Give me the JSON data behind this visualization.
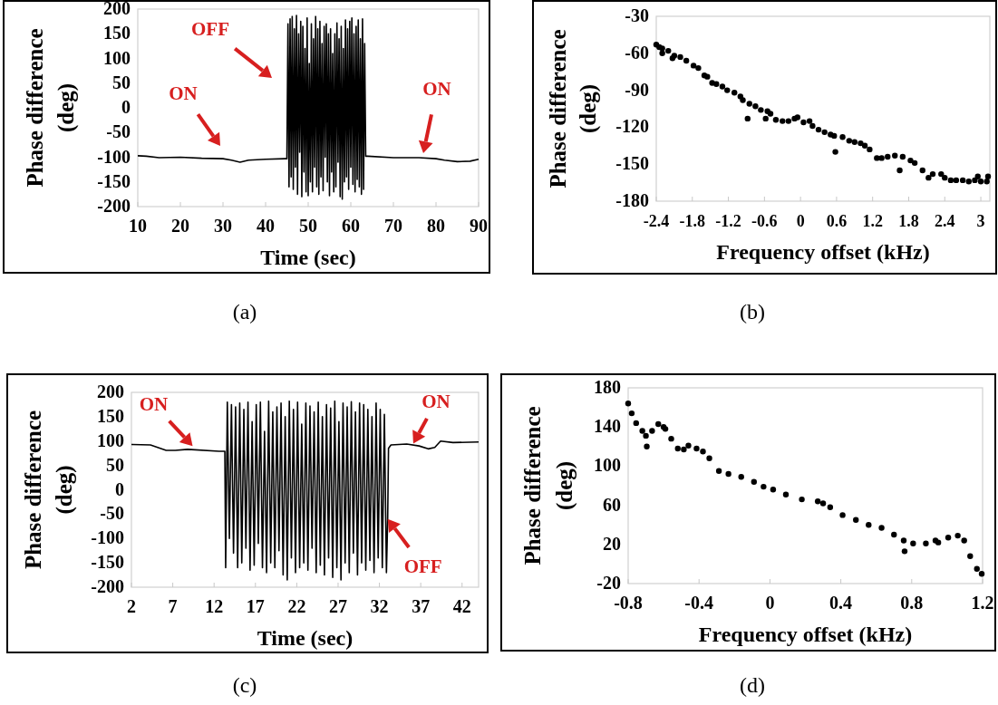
{
  "chart_data": [
    {
      "type": "line",
      "title": "(a)",
      "xlabel": "Time (sec)",
      "ylabel": "Phase difference (deg)",
      "xlim": [
        10,
        90
      ],
      "xticks": [
        10,
        20,
        30,
        40,
        50,
        60,
        70,
        80,
        90
      ],
      "ylim": [
        -200,
        200
      ],
      "yticks": [
        -200,
        -150,
        -100,
        -50,
        0,
        50,
        100,
        150,
        200
      ],
      "series": [
        {
          "color": "#000000",
          "x": [
            10,
            12,
            15,
            20,
            25,
            30,
            32,
            34,
            36,
            40,
            44.5,
            45,
            45.25,
            45.5,
            45.75,
            46,
            46.25,
            46.5,
            46.75,
            47,
            47.25,
            47.5,
            47.75,
            48,
            48.25,
            48.5,
            48.75,
            49,
            49.25,
            49.5,
            49.75,
            50,
            50.25,
            50.5,
            50.75,
            51,
            51.25,
            51.5,
            51.75,
            52,
            52.25,
            52.5,
            52.75,
            53,
            53.25,
            53.5,
            53.75,
            54,
            54.25,
            54.5,
            54.75,
            55,
            55.25,
            55.5,
            55.75,
            56,
            56.25,
            56.5,
            56.75,
            57,
            57.25,
            57.5,
            57.75,
            58,
            58.25,
            58.5,
            58.75,
            59,
            59.25,
            59.5,
            59.75,
            60,
            60.25,
            60.5,
            60.75,
            61,
            61.25,
            61.5,
            61.75,
            62,
            62.25,
            62.5,
            62.75,
            63,
            63.25,
            63.5,
            64,
            70,
            76,
            80,
            82,
            85,
            88,
            90
          ],
          "values": [
            -97,
            -98,
            -101,
            -100,
            -102,
            -103,
            -106,
            -110,
            -106,
            -104,
            -103,
            -103,
            170,
            -160,
            180,
            -140,
            185,
            -165,
            160,
            -120,
            187,
            -175,
            150,
            -90,
            175,
            -180,
            165,
            -130,
            120,
            -170,
            182,
            -178,
            90,
            -150,
            170,
            -170,
            140,
            -120,
            185,
            -160,
            160,
            -175,
            175,
            -140,
            130,
            -168,
            165,
            -100,
            170,
            -150,
            150,
            -178,
            160,
            -130,
            110,
            -170,
            150,
            -160,
            172,
            -110,
            140,
            -180,
            165,
            -185,
            120,
            -150,
            178,
            -140,
            160,
            -165,
            175,
            -120,
            182,
            -155,
            150,
            -170,
            165,
            -145,
            178,
            -160,
            140,
            -175,
            180,
            -165,
            130,
            -98,
            -98,
            -101,
            -101,
            -103,
            -106,
            -109,
            -108,
            -104
          ]
        }
      ],
      "annotations": [
        "OFF",
        "ON",
        "ON"
      ]
    },
    {
      "type": "scatter",
      "title": "(b)",
      "xlabel": "Frequency offset (kHz)",
      "ylabel": "Phase difference (deg)",
      "xlim": [
        -2.4,
        3.15
      ],
      "xticks": [
        -2.4,
        -1.8,
        -1.2,
        -0.6,
        0,
        0.6,
        1.2,
        1.8,
        2.4,
        3
      ],
      "ylim": [
        -180,
        -30
      ],
      "yticks": [
        -180,
        -150,
        -120,
        -90,
        -60,
        -30
      ],
      "marker": "circle",
      "series": [
        {
          "color": "#000000",
          "x": [
            -2.4,
            -2.35,
            -2.3,
            -2.3,
            -2.2,
            -2.13,
            -2.1,
            -2.0,
            -1.9,
            -1.78,
            -1.7,
            -1.6,
            -1.55,
            -1.47,
            -1.4,
            -1.3,
            -1.22,
            -1.1,
            -1.0,
            -0.96,
            -0.88,
            -0.85,
            -0.75,
            -0.66,
            -0.58,
            -0.55,
            -0.5,
            -0.41,
            -0.3,
            -0.2,
            -0.1,
            -0.05,
            0.05,
            0.15,
            0.2,
            0.3,
            0.4,
            0.5,
            0.56,
            0.58,
            0.7,
            0.81,
            0.9,
            1.0,
            1.07,
            1.15,
            1.27,
            1.35,
            1.45,
            1.57,
            1.65,
            1.7,
            1.83,
            1.9,
            2.03,
            2.13,
            2.2,
            2.34,
            2.4,
            2.5,
            2.59,
            2.7,
            2.8,
            2.9,
            2.95,
            3.0,
            3.1,
            3.12
          ],
          "values": [
            -53,
            -55,
            -56,
            -60,
            -58,
            -64,
            -62,
            -63,
            -66,
            -70,
            -72,
            -78,
            -79,
            -84,
            -85,
            -87,
            -90,
            -92,
            -95,
            -98,
            -113,
            -101,
            -103,
            -106,
            -113,
            -107,
            -109,
            -114,
            -115,
            -115,
            -113,
            -112,
            -116,
            -115,
            -119,
            -122,
            -124,
            -126,
            -127,
            -140,
            -128,
            -131,
            -132,
            -133,
            -135,
            -138,
            -145,
            -145,
            -144,
            -143,
            -155,
            -144,
            -147,
            -149,
            -155,
            -161,
            -158,
            -158,
            -161,
            -163,
            -163,
            -163,
            -164,
            -163,
            -160,
            -164,
            -164,
            -160
          ]
        }
      ]
    },
    {
      "type": "line",
      "title": "(c)",
      "xlabel": "Time (sec)",
      "ylabel": "Phase difference (deg)",
      "xlim": [
        2,
        44
      ],
      "xticks": [
        2,
        7,
        12,
        17,
        22,
        27,
        32,
        37,
        42
      ],
      "ylim": [
        -200,
        200
      ],
      "yticks": [
        -200,
        -150,
        -100,
        -50,
        0,
        50,
        100,
        150,
        200
      ],
      "series": [
        {
          "color": "#000000",
          "x": [
            2,
            4.3,
            6.2,
            7.3,
            8.8,
            12.6,
            13.3,
            13.4,
            13.6,
            13.85,
            14.1,
            14.35,
            14.6,
            14.85,
            15.1,
            15.35,
            15.6,
            15.85,
            16.1,
            16.35,
            16.6,
            16.85,
            17.1,
            17.35,
            17.6,
            17.85,
            18.1,
            18.35,
            18.6,
            18.85,
            19.1,
            19.35,
            19.6,
            19.85,
            20.1,
            20.35,
            20.6,
            20.85,
            21.1,
            21.35,
            21.6,
            21.85,
            22.1,
            22.35,
            22.6,
            22.85,
            23.1,
            23.35,
            23.6,
            23.85,
            24.1,
            24.35,
            24.6,
            24.85,
            25.1,
            25.35,
            25.6,
            25.85,
            26.1,
            26.35,
            26.6,
            26.85,
            27.1,
            27.35,
            27.6,
            27.85,
            28.1,
            28.35,
            28.6,
            28.85,
            29.1,
            29.35,
            29.6,
            29.85,
            30.1,
            30.35,
            30.6,
            30.85,
            31.1,
            31.35,
            31.6,
            31.85,
            32.1,
            32.35,
            32.6,
            32.85,
            33.0,
            33.1,
            33.4,
            35.3,
            36.8,
            37.9,
            38.7,
            39.4,
            40.9,
            44
          ],
          "values": [
            93,
            92,
            81,
            81,
            83,
            79,
            79,
            -160,
            180,
            -100,
            175,
            -130,
            170,
            -160,
            178,
            -150,
            165,
            -120,
            180,
            -165,
            140,
            -155,
            175,
            -110,
            180,
            -160,
            120,
            -170,
            182,
            -150,
            160,
            -160,
            170,
            -125,
            178,
            -175,
            150,
            -185,
            182,
            -140,
            165,
            -170,
            180,
            -160,
            135,
            -150,
            178,
            -165,
            172,
            -120,
            160,
            -170,
            180,
            -155,
            150,
            -175,
            175,
            -140,
            168,
            -180,
            182,
            -160,
            140,
            -185,
            178,
            -150,
            170,
            -170,
            181,
            -130,
            160,
            -175,
            178,
            -150,
            175,
            -165,
            165,
            -145,
            150,
            -170,
            178,
            -140,
            165,
            -160,
            155,
            -170,
            -60,
            85,
            92,
            94,
            90,
            84,
            87,
            100,
            97,
            98
          ]
        }
      ],
      "annotations": [
        {
          "text": "ON",
          "x": 9.4,
          "y": 90
        },
        {
          "text": "ON",
          "x": 36.1,
          "y": 95
        },
        {
          "text": "OFF",
          "x": 33,
          "y": -60
        }
      ]
    },
    {
      "type": "scatter",
      "title": "(d)",
      "xlabel": "Frequency offset (kHz)",
      "ylabel": "Phase difference (deg)",
      "xlim": [
        -0.8,
        1.2
      ],
      "xticks": [
        -0.8,
        -0.4,
        0,
        0.4,
        0.8,
        1.2
      ],
      "ylim": [
        -20,
        180
      ],
      "yticks": [
        -20,
        20,
        60,
        100,
        140,
        180
      ],
      "marker": "circle",
      "series": [
        {
          "color": "#000000",
          "x": [
            -0.8,
            -0.78,
            -0.755,
            -0.72,
            -0.7,
            -0.695,
            -0.665,
            -0.63,
            -0.6,
            -0.59,
            -0.557,
            -0.52,
            -0.486,
            -0.46,
            -0.414,
            -0.378,
            -0.342,
            -0.288,
            -0.234,
            -0.162,
            -0.09,
            -0.036,
            0.018,
            0.09,
            0.18,
            0.27,
            0.3,
            0.34,
            0.41,
            0.485,
            0.557,
            0.63,
            0.7,
            0.755,
            0.76,
            0.808,
            0.88,
            0.934,
            0.95,
            1.006,
            1.06,
            1.096,
            1.13,
            1.168,
            1.195
          ],
          "values": [
            164,
            154,
            144,
            136,
            131,
            120,
            136,
            143,
            140,
            138,
            128,
            118,
            117,
            121,
            118,
            115,
            108,
            95,
            92,
            89,
            84,
            79,
            76,
            71,
            66,
            64,
            62,
            58,
            50,
            45,
            40,
            37,
            30,
            24,
            13,
            21,
            21,
            24,
            22,
            27,
            29,
            24,
            8,
            -5,
            -10
          ]
        }
      ]
    }
  ]
}
